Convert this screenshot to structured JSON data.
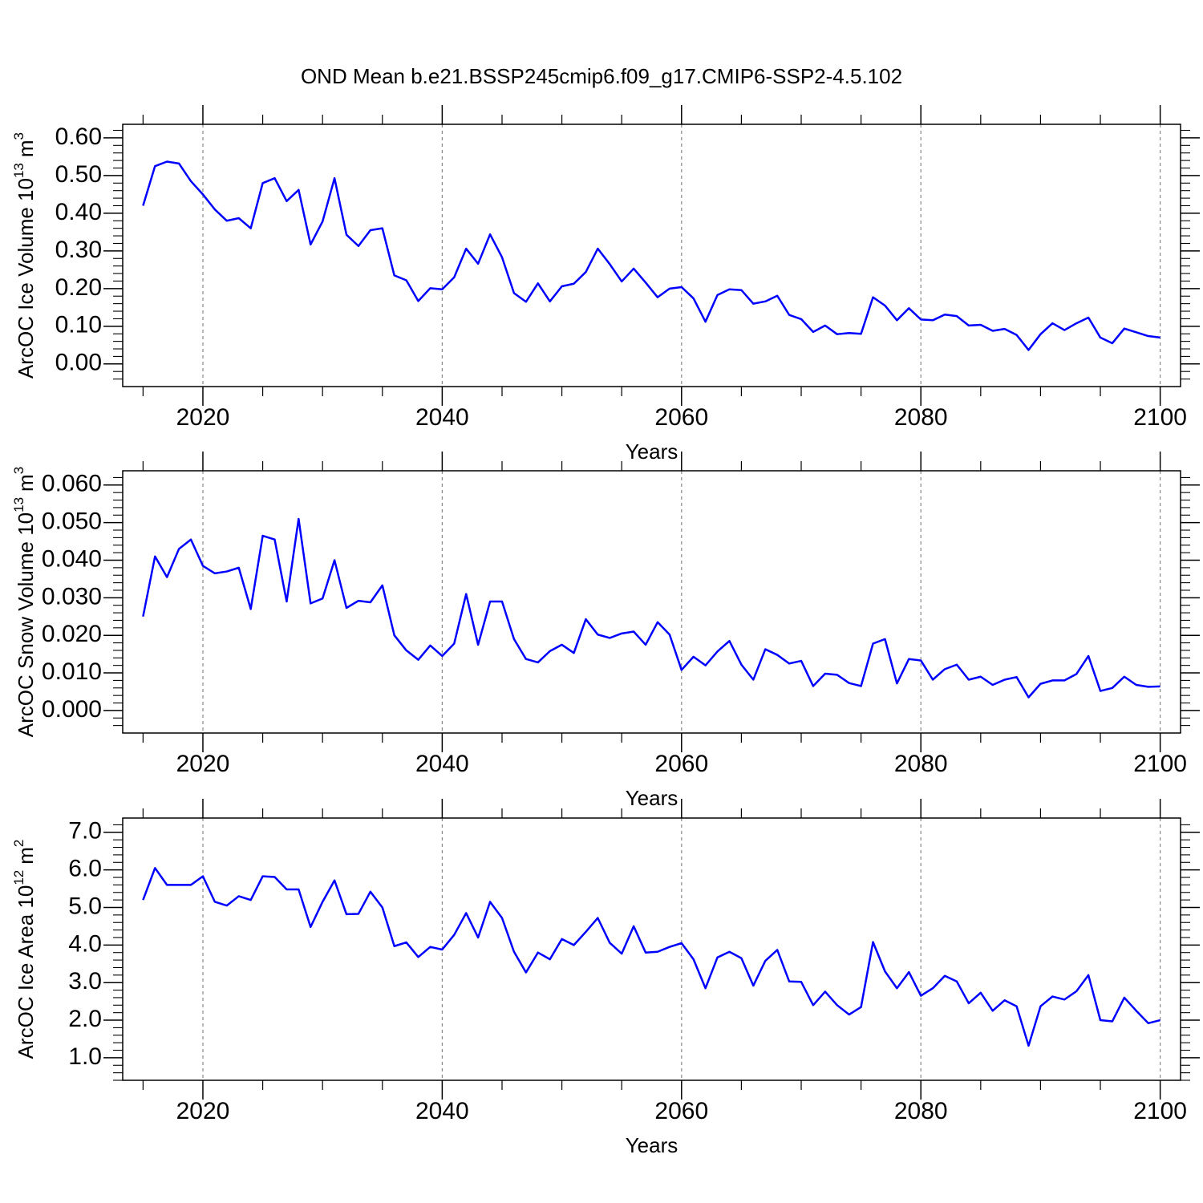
{
  "title": "OND Mean b.e21.BSSP245cmip6.f09_g17.CMIP6-SSP2-4.5.102",
  "chart_data": [
    {
      "type": "line",
      "color": "#0000ff",
      "xlabel": "Years",
      "ylabel": {
        "text": "ArcOC Ice Volume 10",
        "exponent": "13",
        "unit": "m",
        "unit_exponent": "3"
      },
      "xlim": [
        2013.3,
        2101.7
      ],
      "xticks": [
        2020,
        2040,
        2060,
        2080,
        2100
      ],
      "xminorticks": [
        2015,
        2025,
        2030,
        2035,
        2045,
        2050,
        2055,
        2065,
        2070,
        2075,
        2085,
        2090,
        2095
      ],
      "xgrid": true,
      "ylim": [
        -0.06,
        0.636
      ],
      "yticks": [
        {
          "value": 0,
          "label": "0.00"
        },
        {
          "value": 0.1,
          "label": "0.10"
        },
        {
          "value": 0.2,
          "label": "0.20"
        },
        {
          "value": 0.3,
          "label": "0.30"
        },
        {
          "value": 0.4,
          "label": "0.40"
        },
        {
          "value": 0.5,
          "label": "0.50"
        },
        {
          "value": 0.6,
          "label": "0.60"
        }
      ],
      "yminorticks": [
        -0.04,
        -0.02,
        0.02,
        0.04,
        0.06,
        0.08,
        0.12,
        0.14,
        0.16,
        0.18,
        0.22,
        0.24,
        0.26,
        0.28,
        0.32,
        0.34,
        0.36,
        0.38,
        0.42,
        0.44,
        0.46,
        0.48,
        0.52,
        0.54,
        0.56,
        0.58,
        0.62
      ],
      "x": [
        2015,
        2016,
        2017,
        2018,
        2019,
        2020,
        2021,
        2022,
        2023,
        2024,
        2025,
        2026,
        2027,
        2028,
        2029,
        2030,
        2031,
        2032,
        2033,
        2034,
        2035,
        2036,
        2037,
        2038,
        2039,
        2040,
        2041,
        2042,
        2043,
        2044,
        2045,
        2046,
        2047,
        2048,
        2049,
        2050,
        2051,
        2052,
        2053,
        2054,
        2055,
        2056,
        2057,
        2058,
        2059,
        2060,
        2061,
        2062,
        2063,
        2064,
        2065,
        2066,
        2067,
        2068,
        2069,
        2070,
        2071,
        2072,
        2073,
        2074,
        2075,
        2076,
        2077,
        2078,
        2079,
        2080,
        2081,
        2082,
        2083,
        2084,
        2085,
        2086,
        2087,
        2088,
        2089,
        2090,
        2091,
        2092,
        2093,
        2094,
        2095,
        2096,
        2097,
        2098,
        2099,
        2100
      ],
      "values": [
        0.42,
        0.525,
        0.537,
        0.532,
        0.485,
        0.45,
        0.41,
        0.38,
        0.387,
        0.36,
        0.48,
        0.493,
        0.432,
        0.462,
        0.317,
        0.378,
        0.493,
        0.343,
        0.313,
        0.355,
        0.36,
        0.235,
        0.222,
        0.167,
        0.201,
        0.198,
        0.23,
        0.306,
        0.266,
        0.344,
        0.283,
        0.188,
        0.165,
        0.214,
        0.166,
        0.206,
        0.213,
        0.244,
        0.306,
        0.265,
        0.219,
        0.253,
        0.216,
        0.177,
        0.2,
        0.204,
        0.174,
        0.112,
        0.183,
        0.198,
        0.196,
        0.16,
        0.166,
        0.181,
        0.13,
        0.119,
        0.085,
        0.102,
        0.079,
        0.082,
        0.08,
        0.177,
        0.155,
        0.116,
        0.148,
        0.118,
        0.116,
        0.131,
        0.127,
        0.102,
        0.104,
        0.088,
        0.093,
        0.077,
        0.037,
        0.079,
        0.108,
        0.09,
        0.108,
        0.123,
        0.07,
        0.055,
        0.094,
        0.084,
        0.074,
        0.07
      ]
    },
    {
      "type": "line",
      "color": "#0000ff",
      "xlabel": "Years",
      "ylabel": {
        "text": "ArcOC Snow Volume 10",
        "exponent": "13",
        "unit": "m",
        "unit_exponent": "3"
      },
      "xlim": [
        2013.3,
        2101.7
      ],
      "xticks": [
        2020,
        2040,
        2060,
        2080,
        2100
      ],
      "xminorticks": [
        2015,
        2025,
        2030,
        2035,
        2045,
        2050,
        2055,
        2065,
        2070,
        2075,
        2085,
        2090,
        2095
      ],
      "xgrid": true,
      "ylim": [
        -0.006,
        0.0638
      ],
      "yticks": [
        {
          "value": 0,
          "label": "0.000"
        },
        {
          "value": 0.01,
          "label": "0.010"
        },
        {
          "value": 0.02,
          "label": "0.020"
        },
        {
          "value": 0.03,
          "label": "0.030"
        },
        {
          "value": 0.04,
          "label": "0.040"
        },
        {
          "value": 0.05,
          "label": "0.050"
        },
        {
          "value": 0.06,
          "label": "0.060"
        }
      ],
      "yminorticks": [
        -0.004,
        -0.002,
        0.002,
        0.004,
        0.006,
        0.008,
        0.012,
        0.014,
        0.016,
        0.018,
        0.022,
        0.024,
        0.026,
        0.028,
        0.032,
        0.034,
        0.036,
        0.038,
        0.042,
        0.044,
        0.046,
        0.048,
        0.052,
        0.054,
        0.056,
        0.058,
        0.062
      ],
      "x": [
        2015,
        2016,
        2017,
        2018,
        2019,
        2020,
        2021,
        2022,
        2023,
        2024,
        2025,
        2026,
        2027,
        2028,
        2029,
        2030,
        2031,
        2032,
        2033,
        2034,
        2035,
        2036,
        2037,
        2038,
        2039,
        2040,
        2041,
        2042,
        2043,
        2044,
        2045,
        2046,
        2047,
        2048,
        2049,
        2050,
        2051,
        2052,
        2053,
        2054,
        2055,
        2056,
        2057,
        2058,
        2059,
        2060,
        2061,
        2062,
        2063,
        2064,
        2065,
        2066,
        2067,
        2068,
        2069,
        2070,
        2071,
        2072,
        2073,
        2074,
        2075,
        2076,
        2077,
        2078,
        2079,
        2080,
        2081,
        2082,
        2083,
        2084,
        2085,
        2086,
        2087,
        2088,
        2089,
        2090,
        2091,
        2092,
        2093,
        2094,
        2095,
        2096,
        2097,
        2098,
        2099,
        2100
      ],
      "values": [
        0.025,
        0.041,
        0.0355,
        0.043,
        0.0455,
        0.0385,
        0.0365,
        0.037,
        0.038,
        0.027,
        0.0465,
        0.0455,
        0.029,
        0.051,
        0.0285,
        0.0298,
        0.04,
        0.0273,
        0.0292,
        0.0288,
        0.0333,
        0.02,
        0.016,
        0.0135,
        0.0173,
        0.0145,
        0.0178,
        0.031,
        0.0175,
        0.029,
        0.029,
        0.019,
        0.0137,
        0.0128,
        0.0158,
        0.0175,
        0.0153,
        0.0243,
        0.0202,
        0.0193,
        0.0205,
        0.021,
        0.0175,
        0.0235,
        0.0202,
        0.0108,
        0.0143,
        0.012,
        0.0157,
        0.0185,
        0.0122,
        0.0082,
        0.0163,
        0.0148,
        0.0125,
        0.0132,
        0.0065,
        0.0098,
        0.0095,
        0.0073,
        0.0065,
        0.0178,
        0.019,
        0.0072,
        0.0137,
        0.0133,
        0.0082,
        0.011,
        0.0122,
        0.0082,
        0.009,
        0.0068,
        0.0082,
        0.0089,
        0.0035,
        0.0071,
        0.008,
        0.008,
        0.0097,
        0.0145,
        0.0052,
        0.006,
        0.009,
        0.0068,
        0.0063,
        0.0064
      ]
    },
    {
      "type": "line",
      "color": "#0000ff",
      "xlabel": "Years",
      "ylabel": {
        "text": "ArcOC Ice Area 10",
        "exponent": "12",
        "unit": "m",
        "unit_exponent": "2"
      },
      "xlim": [
        2013.3,
        2101.7
      ],
      "xticks": [
        2020,
        2040,
        2060,
        2080,
        2100
      ],
      "xminorticks": [
        2015,
        2025,
        2030,
        2035,
        2045,
        2050,
        2055,
        2065,
        2070,
        2075,
        2085,
        2090,
        2095
      ],
      "xgrid": true,
      "ylim": [
        0.4,
        7.38
      ],
      "yticks": [
        {
          "value": 1,
          "label": "1.0"
        },
        {
          "value": 2,
          "label": "2.0"
        },
        {
          "value": 3,
          "label": "3.0"
        },
        {
          "value": 4,
          "label": "4.0"
        },
        {
          "value": 5,
          "label": "5.0"
        },
        {
          "value": 6,
          "label": "6.0"
        },
        {
          "value": 7,
          "label": "7.0"
        }
      ],
      "yminorticks": [
        0.4,
        0.6,
        0.8,
        1.2,
        1.4,
        1.6,
        1.8,
        2.2,
        2.4,
        2.6,
        2.8,
        3.2,
        3.4,
        3.6,
        3.8,
        4.2,
        4.4,
        4.6,
        4.8,
        5.2,
        5.4,
        5.6,
        5.8,
        6.2,
        6.4,
        6.6,
        6.8,
        7.2
      ],
      "x": [
        2015,
        2016,
        2017,
        2018,
        2019,
        2020,
        2021,
        2022,
        2023,
        2024,
        2025,
        2026,
        2027,
        2028,
        2029,
        2030,
        2031,
        2032,
        2033,
        2034,
        2035,
        2036,
        2037,
        2038,
        2039,
        2040,
        2041,
        2042,
        2043,
        2044,
        2045,
        2046,
        2047,
        2048,
        2049,
        2050,
        2051,
        2052,
        2053,
        2054,
        2055,
        2056,
        2057,
        2058,
        2059,
        2060,
        2061,
        2062,
        2063,
        2064,
        2065,
        2066,
        2067,
        2068,
        2069,
        2070,
        2071,
        2072,
        2073,
        2074,
        2075,
        2076,
        2077,
        2078,
        2079,
        2080,
        2081,
        2082,
        2083,
        2084,
        2085,
        2086,
        2087,
        2088,
        2089,
        2090,
        2091,
        2092,
        2093,
        2094,
        2095,
        2096,
        2097,
        2098,
        2099,
        2100
      ],
      "values": [
        5.2,
        6.05,
        5.6,
        5.6,
        5.6,
        5.83,
        5.15,
        5.05,
        5.3,
        5.2,
        5.83,
        5.81,
        5.48,
        5.48,
        4.48,
        5.15,
        5.72,
        4.82,
        4.83,
        5.42,
        5.0,
        3.97,
        4.07,
        3.68,
        3.95,
        3.88,
        4.27,
        4.85,
        4.2,
        5.15,
        4.72,
        3.82,
        3.27,
        3.8,
        3.62,
        4.16,
        4.0,
        4.35,
        4.72,
        4.06,
        3.77,
        4.5,
        3.8,
        3.82,
        3.95,
        4.05,
        3.62,
        2.85,
        3.67,
        3.82,
        3.65,
        2.92,
        3.58,
        3.87,
        3.03,
        3.02,
        2.4,
        2.76,
        2.4,
        2.15,
        2.35,
        4.08,
        3.3,
        2.85,
        3.28,
        2.65,
        2.85,
        3.18,
        3.03,
        2.45,
        2.73,
        2.25,
        2.53,
        2.37,
        1.32,
        2.37,
        2.63,
        2.55,
        2.77,
        3.2,
        2.0,
        1.97,
        2.6,
        2.25,
        1.92,
        2.0
      ]
    }
  ]
}
